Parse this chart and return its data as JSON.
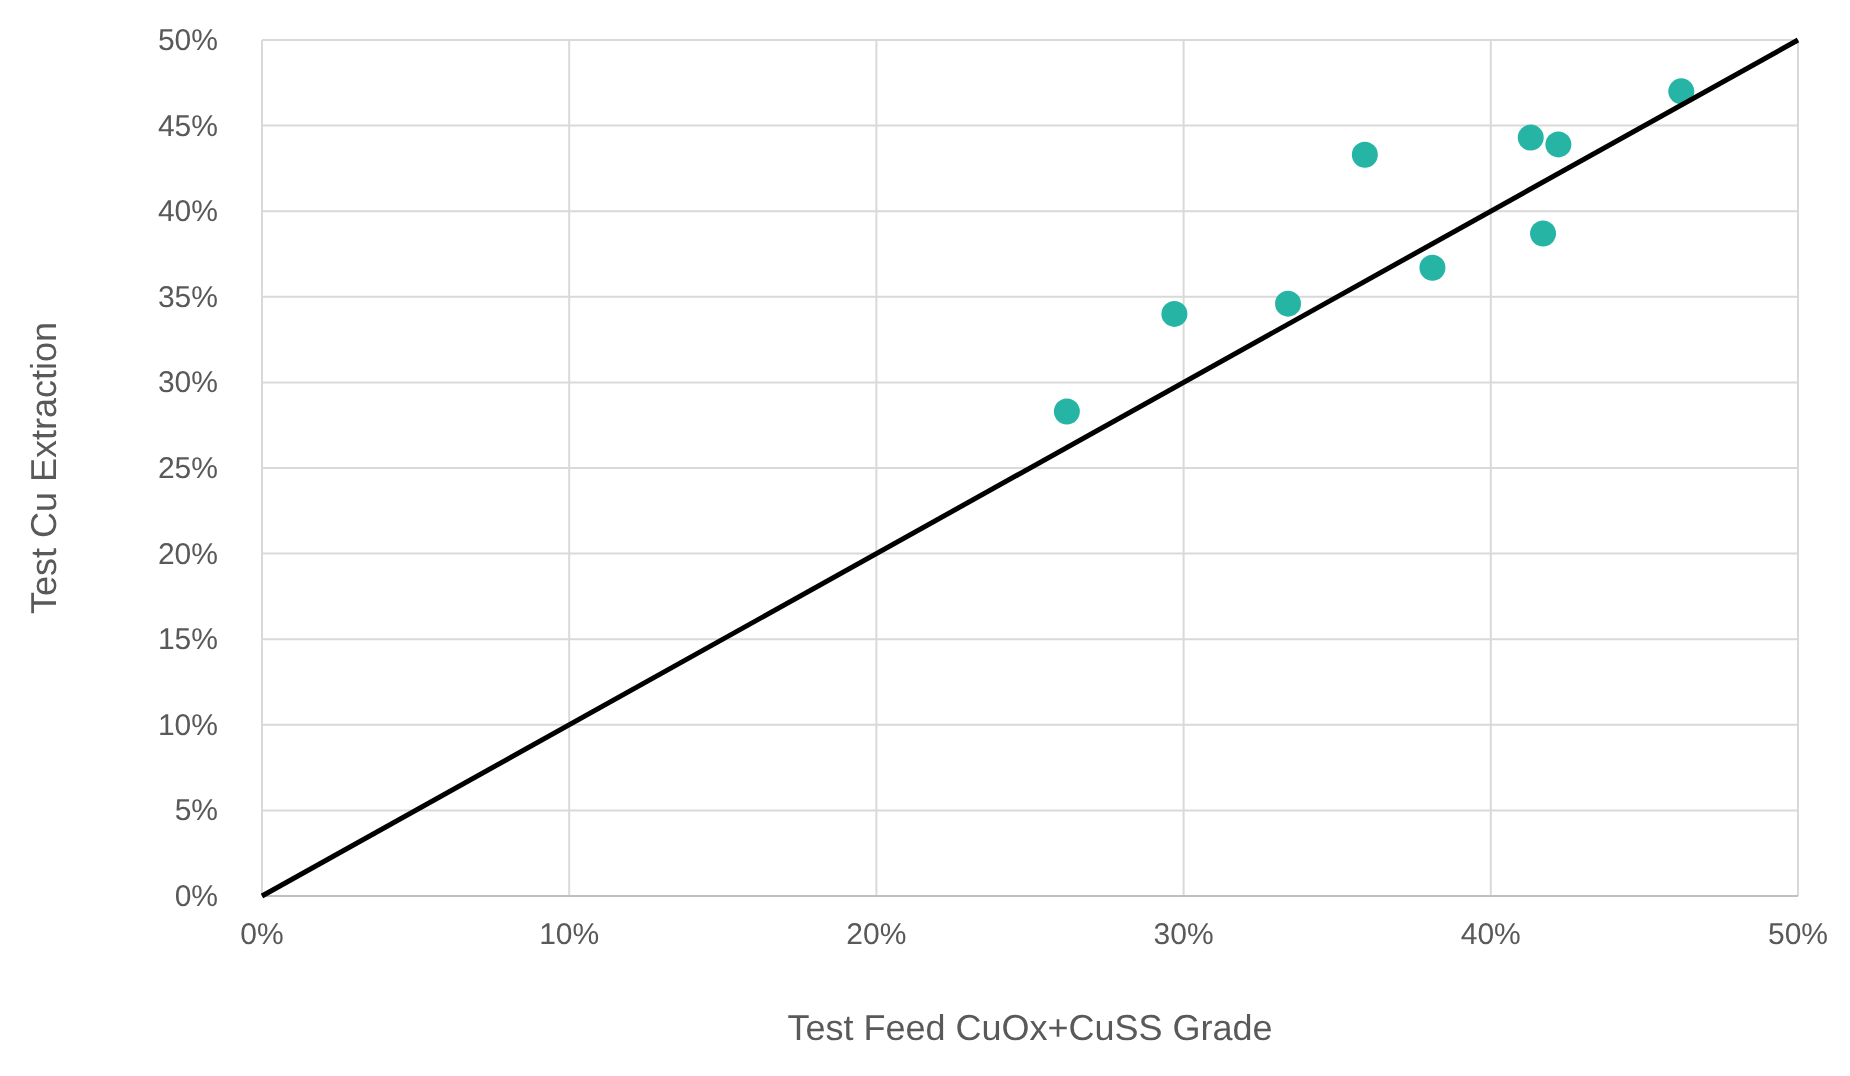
{
  "chart_data": {
    "type": "scatter",
    "xlabel": "Test Feed CuOx+CuSS Grade",
    "ylabel": "Test Cu Extraction",
    "xlim": [
      0,
      50
    ],
    "ylim": [
      0,
      50
    ],
    "xticks": [
      {
        "value": 0,
        "label": "0%"
      },
      {
        "value": 10,
        "label": "10%"
      },
      {
        "value": 20,
        "label": "20%"
      },
      {
        "value": 30,
        "label": "30%"
      },
      {
        "value": 40,
        "label": "40%"
      },
      {
        "value": 50,
        "label": "50%"
      }
    ],
    "yticks": [
      {
        "value": 0,
        "label": "0%"
      },
      {
        "value": 5,
        "label": "5%"
      },
      {
        "value": 10,
        "label": "10%"
      },
      {
        "value": 15,
        "label": "15%"
      },
      {
        "value": 20,
        "label": "20%"
      },
      {
        "value": 25,
        "label": "25%"
      },
      {
        "value": 30,
        "label": "30%"
      },
      {
        "value": 35,
        "label": "35%"
      },
      {
        "value": 40,
        "label": "40%"
      },
      {
        "value": 45,
        "label": "45%"
      },
      {
        "value": 50,
        "label": "50%"
      }
    ],
    "grid": true,
    "series": [
      {
        "color": "#26b5a5",
        "marker": "circle",
        "x": [
          26.2,
          29.7,
          33.4,
          35.9,
          38.1,
          41.3,
          41.7,
          42.2,
          46.2
        ],
        "values": [
          28.3,
          34.0,
          34.6,
          43.3,
          36.7,
          44.3,
          38.7,
          43.9,
          47.0
        ]
      },
      {
        "type": "line",
        "color": "#000000",
        "marker": "none",
        "line_style": "solid",
        "x": [
          0,
          50
        ],
        "values": [
          0,
          50
        ]
      }
    ]
  }
}
